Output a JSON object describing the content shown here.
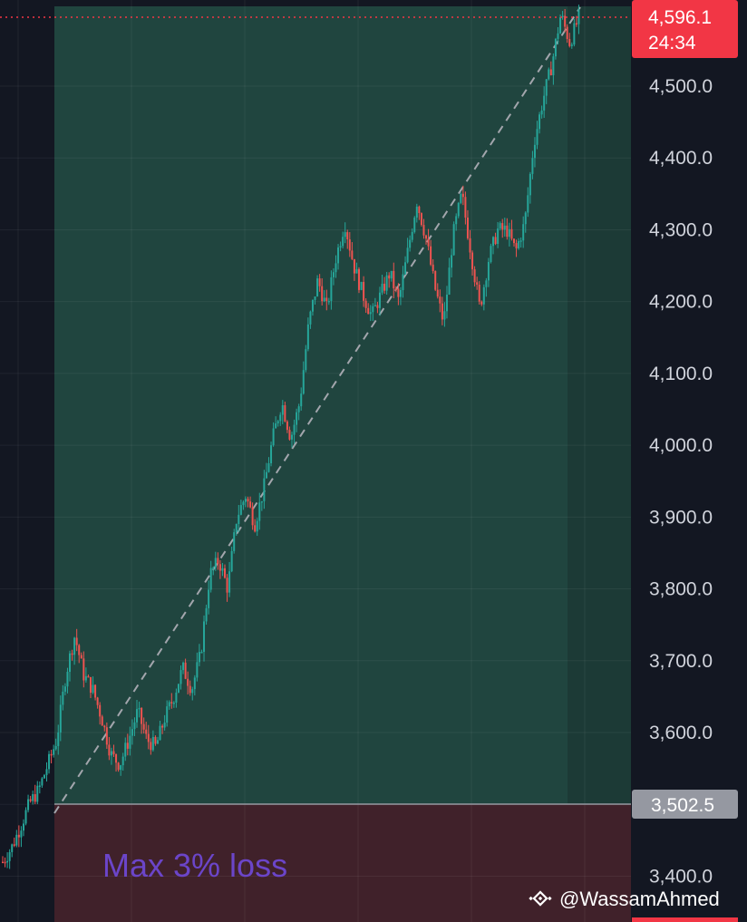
{
  "chart_data": {
    "type": "candlestick",
    "title": "",
    "ylim": [
      3350,
      4610
    ],
    "y_ticks": [
      "4,500.0",
      "4,400.0",
      "4,300.0",
      "4,200.0",
      "4,100.0",
      "4,000.0",
      "3,900.0",
      "3,800.0",
      "3,700.0",
      "3,600.0",
      "3,400.0"
    ],
    "y_tick_values": [
      4500,
      4400,
      4300,
      4200,
      4100,
      4000,
      3900,
      3800,
      3700,
      3600,
      3400
    ],
    "current_price": {
      "label": "4,596.1",
      "countdown": "24:34",
      "value": 4596.1
    },
    "entry_price": {
      "label": "3,502.5",
      "value": 3502.5
    },
    "stop_zone_label": "Max 3% loss",
    "watermark": "@WassamAhmed",
    "price_path": [
      [
        3420,
        3420
      ],
      [
        3450,
        3440
      ],
      [
        3480,
        3470
      ],
      [
        3500,
        3502
      ],
      [
        3540,
        3520
      ],
      [
        3560,
        3555
      ],
      [
        3600,
        3590
      ],
      [
        3670,
        3680
      ],
      [
        3730,
        3735
      ],
      [
        3690,
        3680
      ],
      [
        3650,
        3660
      ],
      [
        3600,
        3620
      ],
      [
        3580,
        3570
      ],
      [
        3560,
        3555
      ],
      [
        3600,
        3590
      ],
      [
        3620,
        3630
      ],
      [
        3600,
        3590
      ],
      [
        3580,
        3580
      ],
      [
        3600,
        3620
      ],
      [
        3640,
        3650
      ],
      [
        3680,
        3690
      ],
      [
        3670,
        3660
      ],
      [
        3700,
        3710
      ],
      [
        3800,
        3820
      ],
      [
        3850,
        3840
      ],
      [
        3820,
        3800
      ],
      [
        3880,
        3900
      ],
      [
        3940,
        3930
      ],
      [
        3900,
        3890
      ],
      [
        3920,
        3940
      ],
      [
        3990,
        4010
      ],
      [
        4050,
        4060
      ],
      [
        4030,
        4010
      ],
      [
        4040,
        4060
      ],
      [
        4150,
        4170
      ],
      [
        4220,
        4230
      ],
      [
        4200,
        4190
      ],
      [
        4240,
        4260
      ],
      [
        4300,
        4310
      ],
      [
        4270,
        4250
      ],
      [
        4220,
        4210
      ],
      [
        4190,
        4180
      ],
      [
        4200,
        4210
      ],
      [
        4230,
        4240
      ],
      [
        4210,
        4200
      ],
      [
        4260,
        4270
      ],
      [
        4330,
        4340
      ],
      [
        4300,
        4290
      ],
      [
        4230,
        4220
      ],
      [
        4180,
        4170
      ],
      [
        4270,
        4290
      ],
      [
        4340,
        4350
      ],
      [
        4280,
        4270
      ],
      [
        4200,
        4190
      ],
      [
        4250,
        4260
      ],
      [
        4290,
        4300
      ],
      [
        4310,
        4300
      ],
      [
        4280,
        4270
      ],
      [
        4300,
        4310
      ],
      [
        4380,
        4420
      ],
      [
        4460,
        4480
      ],
      [
        4520,
        4530
      ],
      [
        4590,
        4600
      ],
      [
        4570,
        4560
      ],
      [
        4596,
        4596
      ]
    ]
  }
}
